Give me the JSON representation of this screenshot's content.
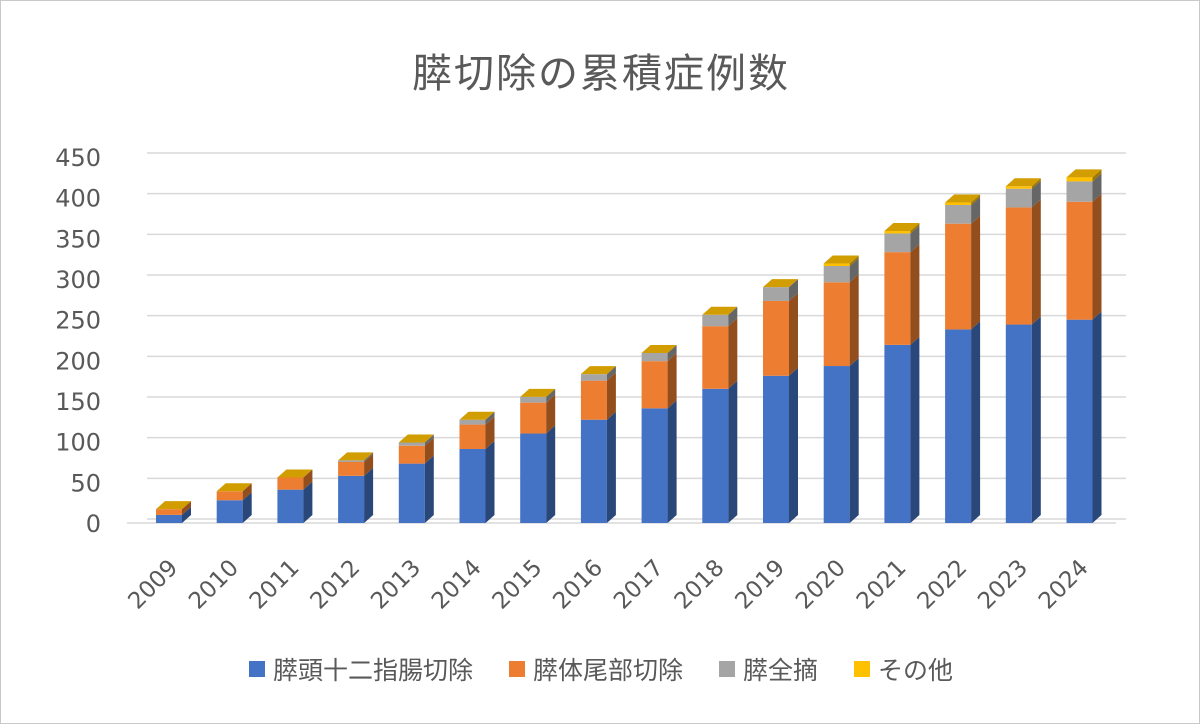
{
  "chart_data": {
    "type": "bar",
    "stacked": true,
    "title": "膵切除の累積症例数",
    "xlabel": "",
    "ylabel": "",
    "ylim": [
      0,
      450
    ],
    "yticks": [
      0,
      50,
      100,
      150,
      200,
      250,
      300,
      350,
      400,
      450
    ],
    "grid": true,
    "legend_position": "bottom",
    "categories": [
      "2009",
      "2010",
      "2011",
      "2012",
      "2013",
      "2014",
      "2015",
      "2016",
      "2017",
      "2018",
      "2019",
      "2020",
      "2021",
      "2022",
      "2023",
      "2024"
    ],
    "series": [
      {
        "name": "膵頭十二指腸切除",
        "color": "#4472C4",
        "values": [
          10,
          28,
          41,
          58,
          73,
          91,
          110,
          127,
          141,
          165,
          181,
          193,
          219,
          238,
          244,
          250
        ]
      },
      {
        "name": "膵体尾部切除",
        "color": "#ED7D31",
        "values": [
          7,
          11,
          15,
          17,
          22,
          30,
          38,
          48,
          58,
          77,
          92,
          103,
          114,
          130,
          144,
          145
        ]
      },
      {
        "name": "膵全摘",
        "color": "#A5A5A5",
        "values": [
          0,
          0,
          0,
          2,
          4,
          6,
          7,
          8,
          10,
          14,
          17,
          20,
          23,
          23,
          23,
          25
        ]
      },
      {
        "name": "その他",
        "color": "#FFC000",
        "values": [
          0,
          0,
          0,
          0,
          0,
          0,
          0,
          0,
          0,
          0,
          0,
          3,
          3,
          3,
          3,
          5
        ]
      }
    ]
  }
}
